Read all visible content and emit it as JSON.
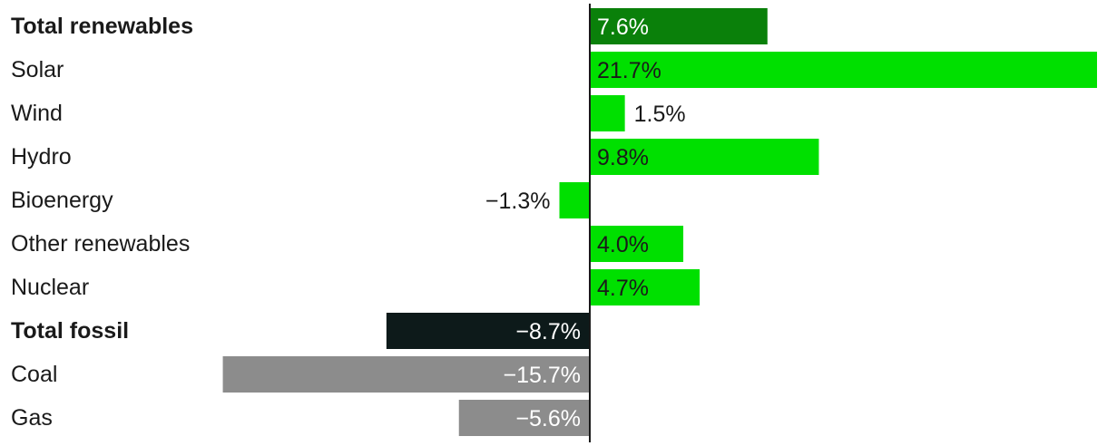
{
  "chart_data": {
    "type": "bar",
    "orientation": "horizontal",
    "categories": [
      "Total renewables",
      "Solar",
      "Wind",
      "Hydro",
      "Bioenergy",
      "Other renewables",
      "Nuclear",
      "Total fossil",
      "Coal",
      "Gas"
    ],
    "values": [
      7.6,
      21.7,
      1.5,
      9.8,
      -1.3,
      4.0,
      4.7,
      -8.7,
      -15.7,
      -5.6
    ],
    "value_labels": [
      "7.6%",
      "21.7%",
      "1.5%",
      "9.8%",
      "−1.3%",
      "4.0%",
      "4.7%",
      "−8.7%",
      "−15.7%",
      "−5.6%"
    ],
    "bold_categories": [
      "Total renewables",
      "Total fossil"
    ],
    "bar_colors": [
      "#0a800a",
      "#00e000",
      "#00e000",
      "#00e000",
      "#00e000",
      "#00e000",
      "#00e000",
      "#0d1a1a",
      "#8c8c8c",
      "#8c8c8c"
    ],
    "title": "",
    "xlabel": "",
    "ylabel": "",
    "xlim": [
      -17.1,
      21.7
    ],
    "grid": false,
    "legend": "none"
  }
}
